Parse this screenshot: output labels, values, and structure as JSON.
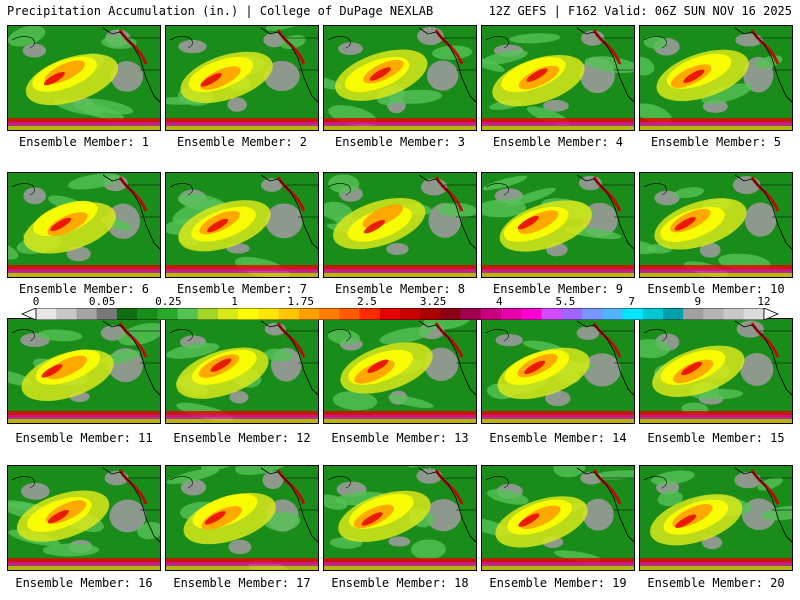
{
  "header": {
    "title": "Precipitation Accumulation (in.) | College of DuPage NEXLAB",
    "run_info": "12Z GEFS | F162 Valid: 06Z SUN NOV 16 2025"
  },
  "members": [
    "Ensemble Member: 1",
    "Ensemble Member: 2",
    "Ensemble Member: 3",
    "Ensemble Member: 4",
    "Ensemble Member: 5",
    "Ensemble Member: 6",
    "Ensemble Member: 7",
    "Ensemble Member: 8",
    "Ensemble Member: 9",
    "Ensemble Member: 10",
    "Ensemble Member: 11",
    "Ensemble Member: 12",
    "Ensemble Member: 13",
    "Ensemble Member: 14",
    "Ensemble Member: 15",
    "Ensemble Member: 16",
    "Ensemble Member: 17",
    "Ensemble Member: 18",
    "Ensemble Member: 19",
    "Ensemble Member: 20"
  ],
  "scale": {
    "labels": [
      "0",
      "0.05",
      "0.25",
      "1",
      "1.75",
      "2.5",
      "3.25",
      "4",
      "5.5",
      "7",
      "9",
      "12"
    ],
    "colors": [
      "#e6e6e6",
      "#c8c8c8",
      "#a5a5a5",
      "#787878",
      "#0f6e0f",
      "#1a8c1a",
      "#2aa82a",
      "#55c255",
      "#a0d628",
      "#d8e81a",
      "#ffff00",
      "#ffe600",
      "#ffc400",
      "#ffa000",
      "#ff7d00",
      "#ff5a00",
      "#ff2a00",
      "#e60000",
      "#c80000",
      "#aa0000",
      "#8c0019",
      "#a00050",
      "#c8007d",
      "#e600aa",
      "#ff00d2",
      "#d24bff",
      "#a064ff",
      "#7896ff",
      "#50b4ff",
      "#00e6ff",
      "#00c8d2",
      "#00a0aa",
      "#a0a0a0",
      "#b4b4b4",
      "#c8c8c8",
      "#dcdcdc"
    ]
  }
}
